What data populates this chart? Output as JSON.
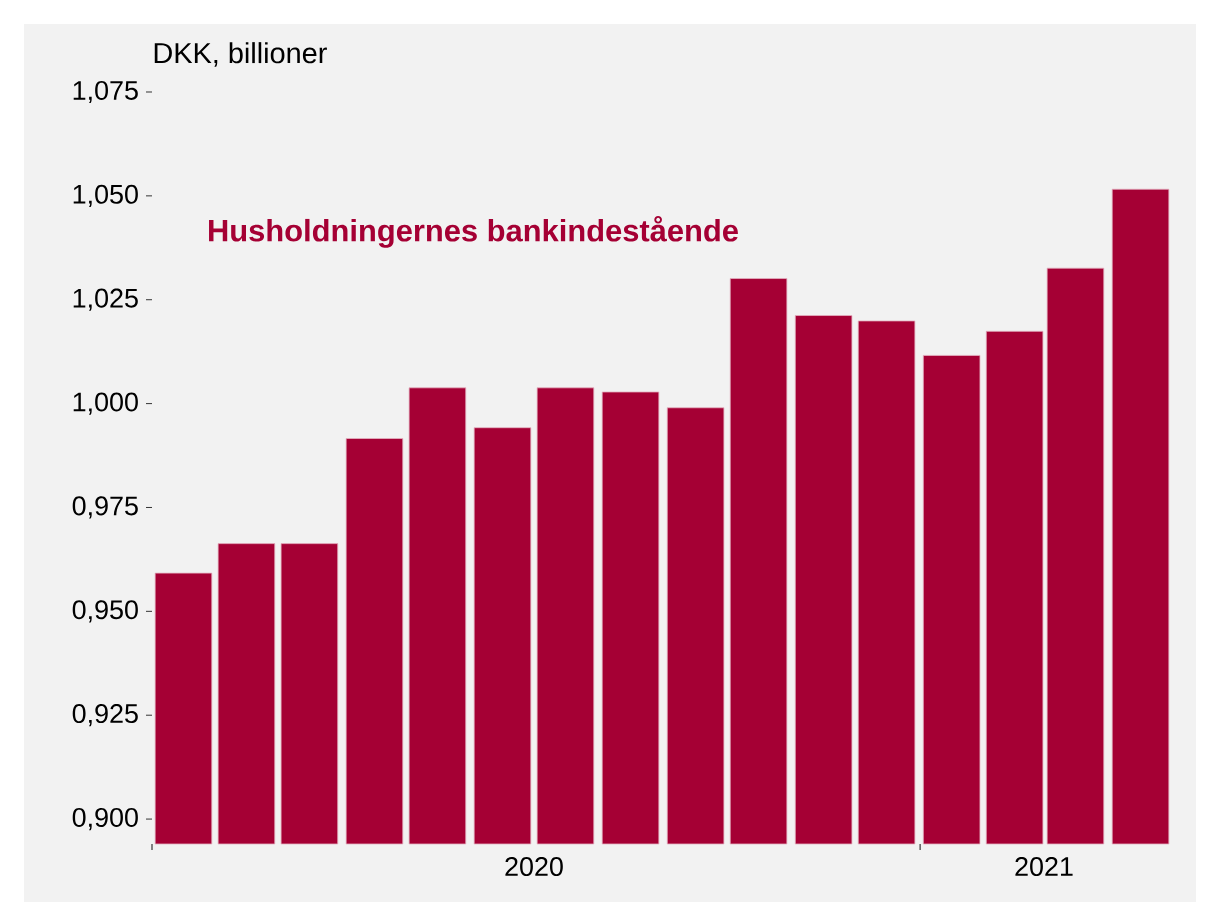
{
  "chart_data": {
    "type": "bar",
    "title": "Husholdningernes bankindestående",
    "ylabel": "DKK, billioner",
    "x": [
      "2020-01-16",
      "2020-02-15",
      "2020-03-16",
      "2020-04-16",
      "2020-05-16",
      "2020-06-16",
      "2020-07-16",
      "2020-08-16",
      "2020-09-16",
      "2020-10-16",
      "2020-11-16",
      "2020-12-16",
      "2021-01-16",
      "2021-02-15",
      "2021-03-16",
      "2021-04-16"
    ],
    "values": [
      0.9592,
      0.9663,
      0.9663,
      0.9916,
      1.0038,
      0.9942,
      1.0038,
      1.0028,
      0.999,
      1.0301,
      1.0212,
      1.0199,
      1.0116,
      1.0174,
      1.0326,
      1.0516
    ],
    "color": "#a50034",
    "ylim": [
      0.894,
      1.075
    ],
    "yticks": [
      {
        "value": 0.9,
        "label": "0,900"
      },
      {
        "value": 0.925,
        "label": "0,925"
      },
      {
        "value": 0.95,
        "label": "0,950"
      },
      {
        "value": 0.975,
        "label": "0,975"
      },
      {
        "value": 1.0,
        "label": "1,000"
      },
      {
        "value": 1.025,
        "label": "1,025"
      },
      {
        "value": 1.05,
        "label": "1,050"
      },
      {
        "value": 1.075,
        "label": "1,075"
      }
    ],
    "xlim": [
      "2020-01-01",
      "2021-05-01"
    ],
    "xticks": [
      {
        "value": "2020-01-01",
        "label": null
      },
      {
        "value": "2020-07-01",
        "label": "2020"
      },
      {
        "value": "2021-01-01",
        "label": null
      },
      {
        "value": "2021-03-01",
        "label": "2021"
      }
    ],
    "grid": false
  }
}
